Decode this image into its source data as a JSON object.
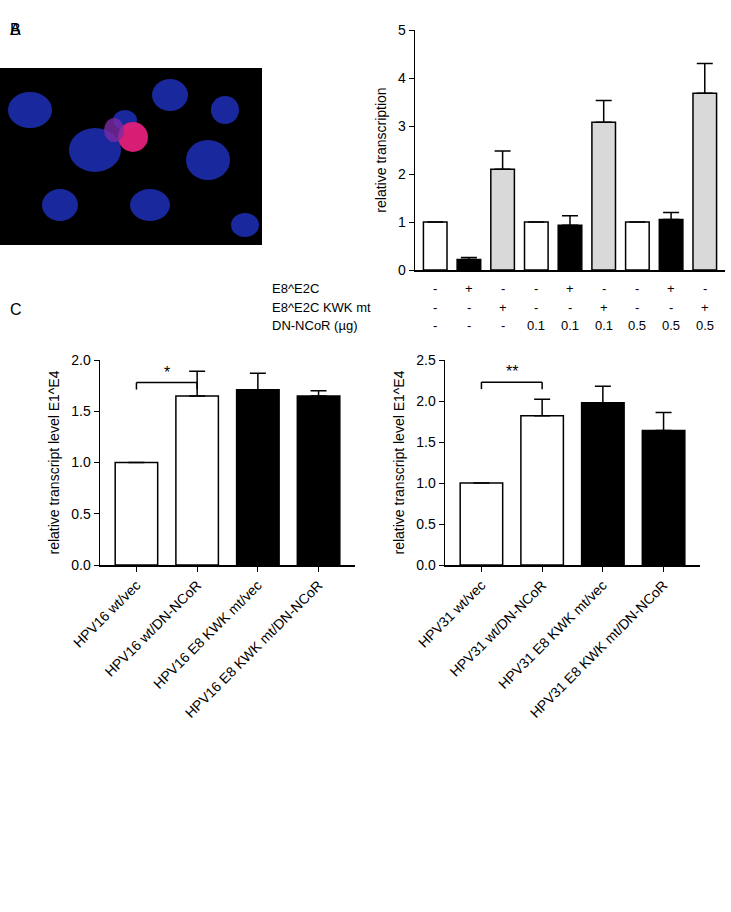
{
  "chart_data": [
    {
      "type": "image",
      "title": "A"
    },
    {
      "type": "bar",
      "title": "B",
      "categories": [
        null,
        null,
        null,
        null,
        null,
        null,
        null,
        null,
        null
      ],
      "values": [
        1,
        0.22,
        2.1,
        1,
        0.93,
        3.08,
        1,
        1.05,
        3.68
      ],
      "errors": [
        0,
        0.04,
        0.38,
        0,
        0.2,
        0.45,
        0,
        0.15,
        0.62
      ],
      "colors": [
        "#ffffff",
        "#000000",
        "#d9d9d9",
        "#ffffff",
        "#000000",
        "#d9d9d9",
        "#ffffff",
        "#000000",
        "#d9d9d9"
      ],
      "y_label": "relative transcription",
      "ylim": [
        0,
        5
      ],
      "yticks": [
        0,
        1,
        2,
        3,
        4,
        5
      ],
      "grid": false,
      "conditions": [
        {
          "label": "E8^E2C",
          "values": [
            "-",
            "+",
            "-",
            "-",
            "+",
            "-",
            "-",
            "+",
            "-"
          ]
        },
        {
          "label": "E8^E2C KWK mt",
          "values": [
            "-",
            "-",
            "+",
            "-",
            "-",
            "+",
            "-",
            "-",
            "+"
          ]
        },
        {
          "label": "DN-NCoR (µg)",
          "values": [
            "-",
            "-",
            "-",
            "0.1",
            "0.1",
            "0.1",
            "0.5",
            "0.5",
            "0.5"
          ]
        }
      ]
    },
    {
      "type": "bar",
      "title": "C",
      "categories": [
        "HPV16 wt/vec",
        "HPV16 wt/DN-NCoR",
        "HPV16 E8 KWK mt/vec",
        "HPV16 E8 KWK mt/DN-NCoR"
      ],
      "values": [
        1,
        1.65,
        1.71,
        1.65
      ],
      "errors": [
        0,
        0.24,
        0.16,
        0.05
      ],
      "colors": [
        "#ffffff",
        "#ffffff",
        "#000000",
        "#000000"
      ],
      "y_label": "relative transcript level E1^E4",
      "ylim": [
        0,
        2
      ],
      "yticks": [
        {
          "value": 0,
          "label": "0.0"
        },
        {
          "value": 0.5,
          "label": "0.5"
        },
        {
          "value": 1,
          "label": "1.0"
        },
        {
          "value": 1.5,
          "label": "1.5"
        },
        {
          "value": 2,
          "label": "2.0"
        }
      ],
      "grid": false,
      "significance": [
        {
          "from": 0,
          "to": 1,
          "y": 1.78,
          "label": "*"
        }
      ]
    },
    {
      "type": "bar",
      "categories": [
        "HPV31 wt/vec",
        "HPV31 wt/DN-NCoR",
        "HPV31 E8 KWK mt/vec",
        "HPV31 E8 KWK mt/DN-NCoR"
      ],
      "values": [
        1,
        1.82,
        1.98,
        1.64
      ],
      "errors": [
        0,
        0.2,
        0.2,
        0.22
      ],
      "colors": [
        "#ffffff",
        "#ffffff",
        "#000000",
        "#000000"
      ],
      "y_label": "relative transcript level E1^E4",
      "ylim": [
        0,
        2.5
      ],
      "yticks": [
        {
          "value": 0,
          "label": "0.0"
        },
        {
          "value": 0.5,
          "label": "0.5"
        },
        {
          "value": 1,
          "label": "1.0"
        },
        {
          "value": 1.5,
          "label": "1.5"
        },
        {
          "value": 2,
          "label": "2.0"
        },
        {
          "value": 2.5,
          "label": "2.5"
        }
      ],
      "grid": false,
      "significance": [
        {
          "from": 0,
          "to": 1,
          "y": 2.23,
          "label": "**"
        }
      ]
    }
  ]
}
